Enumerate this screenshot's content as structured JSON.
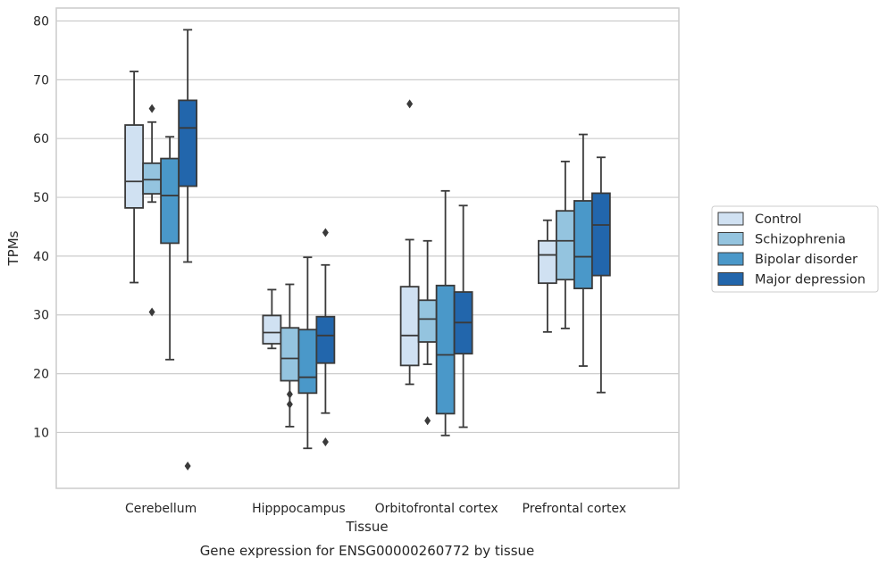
{
  "chart_data": {
    "type": "box",
    "title": "",
    "caption": "Gene expression for ENSG00000260772 by tissue",
    "xlabel": "Tissue",
    "ylabel": "TPMs",
    "ylim": [
      0.5,
      82.2
    ],
    "yticks": [
      10,
      20,
      30,
      40,
      50,
      60,
      70,
      80
    ],
    "grid": "horizontal",
    "legend_position": "right",
    "categories": [
      "Cerebellum",
      "Hipppocampus",
      "Orbitofrontal cortex",
      "Prefrontal cortex"
    ],
    "series": [
      {
        "name": "Control",
        "color": "#d0e1f2",
        "boxes": [
          {
            "whisker_low": 35.5,
            "q1": 48.2,
            "median": 52.7,
            "q3": 62.3,
            "whisker_high": 71.4,
            "outliers": []
          },
          {
            "whisker_low": 24.3,
            "q1": 25.1,
            "median": 27.0,
            "q3": 29.9,
            "whisker_high": 34.3,
            "outliers": []
          },
          {
            "whisker_low": 18.2,
            "q1": 21.4,
            "median": 26.5,
            "q3": 34.8,
            "whisker_high": 42.8,
            "outliers": [
              65.9
            ]
          },
          {
            "whisker_low": 27.1,
            "q1": 35.4,
            "median": 40.2,
            "q3": 42.6,
            "whisker_high": 46.1,
            "outliers": []
          }
        ]
      },
      {
        "name": "Schizophrenia",
        "color": "#94c4df",
        "boxes": [
          {
            "whisker_low": 49.2,
            "q1": 50.6,
            "median": 53.0,
            "q3": 55.8,
            "whisker_high": 62.8,
            "outliers": [
              65.1,
              30.5
            ]
          },
          {
            "whisker_low": 11.0,
            "q1": 18.8,
            "median": 22.6,
            "q3": 27.8,
            "whisker_high": 35.2,
            "outliers": [
              16.5,
              14.8
            ]
          },
          {
            "whisker_low": 21.6,
            "q1": 25.4,
            "median": 29.3,
            "q3": 32.5,
            "whisker_high": 42.6,
            "outliers": [
              12.0
            ]
          },
          {
            "whisker_low": 27.7,
            "q1": 36.0,
            "median": 42.6,
            "q3": 47.7,
            "whisker_high": 56.1,
            "outliers": []
          }
        ]
      },
      {
        "name": "Bipolar disorder",
        "color": "#4a98c9",
        "boxes": [
          {
            "whisker_low": 22.4,
            "q1": 42.2,
            "median": 50.3,
            "q3": 56.6,
            "whisker_high": 60.3,
            "outliers": []
          },
          {
            "whisker_low": 7.3,
            "q1": 16.7,
            "median": 19.4,
            "q3": 27.5,
            "whisker_high": 39.8,
            "outliers": []
          },
          {
            "whisker_low": 9.5,
            "q1": 13.2,
            "median": 23.2,
            "q3": 35.0,
            "whisker_high": 51.1,
            "outliers": []
          },
          {
            "whisker_low": 21.3,
            "q1": 34.5,
            "median": 39.9,
            "q3": 49.4,
            "whisker_high": 60.7,
            "outliers": []
          }
        ]
      },
      {
        "name": "Major depression",
        "color": "#2266ac",
        "boxes": [
          {
            "whisker_low": 39.0,
            "q1": 51.9,
            "median": 61.8,
            "q3": 66.5,
            "whisker_high": 78.5,
            "outliers": [
              4.3
            ]
          },
          {
            "whisker_low": 13.3,
            "q1": 21.8,
            "median": 26.5,
            "q3": 29.7,
            "whisker_high": 38.5,
            "outliers": [
              44.0,
              8.4
            ]
          },
          {
            "whisker_low": 10.9,
            "q1": 23.4,
            "median": 28.7,
            "q3": 33.9,
            "whisker_high": 48.6,
            "outliers": []
          },
          {
            "whisker_low": 16.8,
            "q1": 36.7,
            "median": 45.3,
            "q3": 50.7,
            "whisker_high": 56.8,
            "outliers": []
          }
        ]
      }
    ]
  }
}
